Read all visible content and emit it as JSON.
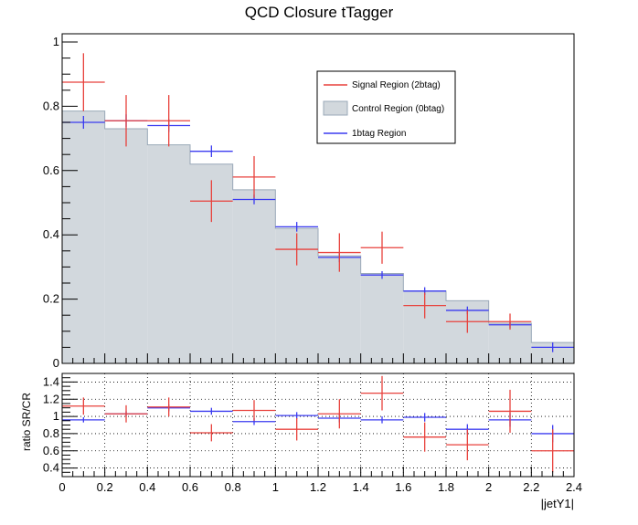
{
  "chart_data": [
    {
      "type": "histogram",
      "title": "QCD Closure tTagger",
      "xlabel": "",
      "ylabel": "",
      "xlim": [
        0,
        2.4
      ],
      "ylim": [
        0,
        1.0
      ],
      "y_ticks": [
        "0",
        "0.2",
        "0.4",
        "0.6",
        "0.8",
        "1"
      ],
      "grid": false,
      "legend_position": "top-right",
      "bin_edges": [
        0,
        0.2,
        0.4,
        0.6,
        0.8,
        1.0,
        1.2,
        1.4,
        1.6,
        1.8,
        2.0,
        2.2,
        2.4
      ],
      "series": [
        {
          "name": "Signal Region (2btag)",
          "style": "error-cross",
          "color": "#e8413c",
          "values": [
            0.875,
            0.755,
            0.755,
            0.505,
            0.58,
            0.355,
            0.345,
            0.36,
            0.18,
            0.13,
            0.13,
            null
          ],
          "errors": [
            0.09,
            0.08,
            0.08,
            0.065,
            0.065,
            0.05,
            0.06,
            0.05,
            0.04,
            0.035,
            0.025,
            null
          ]
        },
        {
          "name": "Control Region (0btag)",
          "style": "filled-step",
          "color": "#d2d8dd",
          "values": [
            0.785,
            0.73,
            0.68,
            0.62,
            0.54,
            0.42,
            0.335,
            0.28,
            0.225,
            0.195,
            0.125,
            0.065
          ],
          "errors": [
            0.01,
            0.01,
            0.01,
            0.01,
            0.01,
            0.01,
            0.01,
            0.01,
            0.01,
            0.01,
            0.01,
            0.01
          ]
        },
        {
          "name": "1btag Region",
          "style": "error-cross",
          "color": "#3b3bf0",
          "values": [
            0.75,
            0.755,
            0.74,
            0.66,
            0.51,
            0.425,
            0.33,
            0.275,
            0.225,
            0.165,
            0.12,
            0.05
          ],
          "errors": [
            0.02,
            0.02,
            0.02,
            0.018,
            0.015,
            0.015,
            0.015,
            0.012,
            0.012,
            0.012,
            0.01,
            0.015
          ]
        }
      ]
    },
    {
      "type": "ratio",
      "title": "",
      "xlabel": "|jetY1|",
      "ylabel": "ratio SR/CR",
      "xlim": [
        0,
        2.4
      ],
      "ylim": [
        0.3,
        1.5
      ],
      "x_ticks": [
        "0",
        "0.2",
        "0.4",
        "0.6",
        "0.8",
        "1",
        "1.2",
        "1.4",
        "1.6",
        "1.8",
        "2",
        "2.2",
        "2.4"
      ],
      "y_ticks": [
        "0.4",
        "0.6",
        "0.8",
        "1",
        "1.2",
        "1.4"
      ],
      "grid": true,
      "bin_edges": [
        0,
        0.2,
        0.4,
        0.6,
        0.8,
        1.0,
        1.2,
        1.4,
        1.6,
        1.8,
        2.0,
        2.2,
        2.4
      ],
      "series": [
        {
          "name": "Signal Region (2btag)",
          "color": "#e8413c",
          "values": [
            1.12,
            1.03,
            1.11,
            0.81,
            1.07,
            0.85,
            1.03,
            1.27,
            0.76,
            0.67,
            1.06,
            0.6
          ],
          "errors": [
            0.1,
            0.1,
            0.11,
            0.1,
            0.12,
            0.13,
            0.17,
            0.2,
            0.17,
            0.18,
            0.25,
            0.25
          ]
        },
        {
          "name": "1btag Region",
          "color": "#3b3bf0",
          "values": [
            0.96,
            1.03,
            1.1,
            1.06,
            0.94,
            1.01,
            0.98,
            0.96,
            0.99,
            0.85,
            0.96,
            0.8
          ],
          "errors": [
            0.03,
            0.03,
            0.04,
            0.04,
            0.04,
            0.04,
            0.05,
            0.04,
            0.05,
            0.06,
            0.08,
            0.1
          ]
        }
      ]
    }
  ]
}
